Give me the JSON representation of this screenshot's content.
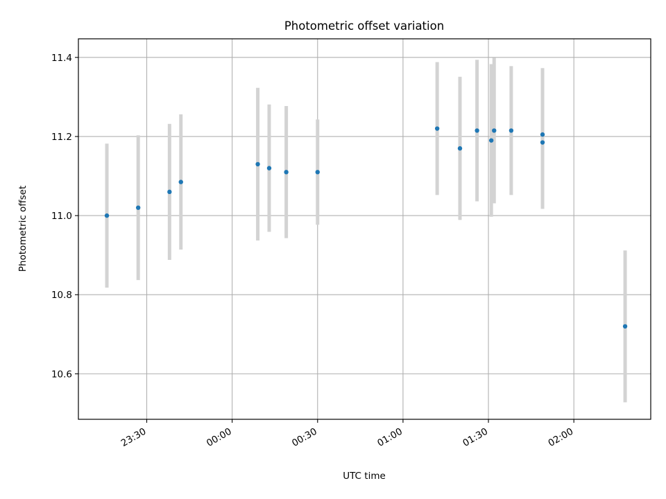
{
  "chart_data": {
    "type": "scatter",
    "title": "Photometric offset variation",
    "xlabel": "UTC time",
    "ylabel": "Photometric offset",
    "x_tick_labels": [
      "23:30",
      "00:00",
      "00:30",
      "01:00",
      "01:30",
      "02:00"
    ],
    "y_tick_labels": [
      "10.6",
      "10.8",
      "11.0",
      "11.2",
      "11.4"
    ],
    "y_ticks": [
      10.6,
      10.8,
      11.0,
      11.2,
      11.4
    ],
    "ylim": [
      10.485,
      11.447
    ],
    "xlim": [
      "23:06",
      "02:27"
    ],
    "grid": true,
    "colors": {
      "point": "#1f77b4",
      "errorbar": "#d3d3d3",
      "grid": "#b0b0b0"
    },
    "series": [
      {
        "points": [
          {
            "x": "23:16",
            "y": 11.0,
            "err": 0.182
          },
          {
            "x": "23:27",
            "y": 11.02,
            "err": 0.183
          },
          {
            "x": "23:38",
            "y": 11.06,
            "err": 0.172
          },
          {
            "x": "23:42",
            "y": 11.085,
            "err": 0.171
          },
          {
            "x": "00:09",
            "y": 11.13,
            "err": 0.193
          },
          {
            "x": "00:13",
            "y": 11.12,
            "err": 0.161
          },
          {
            "x": "00:19",
            "y": 11.11,
            "err": 0.167
          },
          {
            "x": "00:30",
            "y": 11.11,
            "err": 0.133
          },
          {
            "x": "01:12",
            "y": 11.22,
            "err": 0.168
          },
          {
            "x": "01:20",
            "y": 11.17,
            "err": 0.181
          },
          {
            "x": "01:26",
            "y": 11.215,
            "err": 0.179
          },
          {
            "x": "01:31",
            "y": 11.19,
            "err": 0.193
          },
          {
            "x": "01:32",
            "y": 11.215,
            "err": 0.184
          },
          {
            "x": "01:38",
            "y": 11.215,
            "err": 0.163
          },
          {
            "x": "01:49",
            "y": 11.185,
            "err": 0.168
          },
          {
            "x": "01:49",
            "y": 11.205,
            "err": 0.168
          },
          {
            "x": "02:18",
            "y": 10.72,
            "err": 0.192
          }
        ]
      }
    ]
  }
}
